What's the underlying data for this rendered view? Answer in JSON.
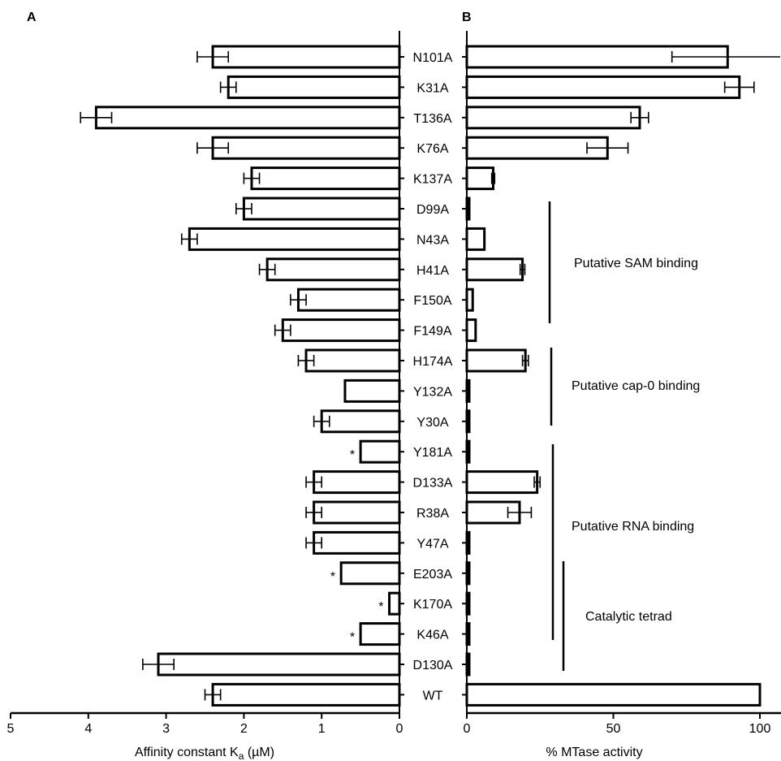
{
  "chart_data": [
    {
      "panel": "A",
      "type": "bar",
      "orientation": "horizontal-reversed",
      "xlabel_main": "Affinity constant K",
      "xlabel_sub": "a",
      "xlabel_unit": " (µM)",
      "xlim": [
        0,
        5
      ],
      "xticks": [
        "5",
        "4",
        "3",
        "2",
        "1",
        "0"
      ],
      "categories": [
        "N101A",
        "K31A",
        "T136A",
        "K76A",
        "K137A",
        "D99A",
        "N43A",
        "H41A",
        "F150A",
        "F149A",
        "H174A",
        "Y132A",
        "Y30A",
        "Y181A",
        "D133A",
        "R38A",
        "Y47A",
        "E203A",
        "K170A",
        "K46A",
        "D130A",
        "WT"
      ],
      "values": [
        2.4,
        2.2,
        3.9,
        2.4,
        1.9,
        2.0,
        2.7,
        1.7,
        1.3,
        1.5,
        1.2,
        0.7,
        1.0,
        0.5,
        1.1,
        1.1,
        1.1,
        0.75,
        0.13,
        0.5,
        3.1,
        2.4
      ],
      "errors": [
        0.2,
        0.1,
        0.2,
        0.2,
        0.1,
        0.1,
        0.1,
        0.1,
        0.1,
        0.1,
        0.1,
        null,
        0.1,
        null,
        0.1,
        0.1,
        0.1,
        null,
        null,
        null,
        0.2,
        0.1
      ],
      "star_marker": "*",
      "starred": [
        "Y181A",
        "E203A",
        "K170A",
        "K46A"
      ]
    },
    {
      "panel": "B",
      "type": "bar",
      "orientation": "horizontal",
      "xlabel": "% MTase activity",
      "xlim": [
        0,
        108
      ],
      "xticks": [
        "0",
        "50",
        "100"
      ],
      "categories": [
        "N101A",
        "K31A",
        "T136A",
        "K76A",
        "K137A",
        "D99A",
        "N43A",
        "H41A",
        "F150A",
        "F149A",
        "H174A",
        "Y132A",
        "Y30A",
        "Y181A",
        "D133A",
        "R38A",
        "Y47A",
        "E203A",
        "K170A",
        "K46A",
        "D130A",
        "WT"
      ],
      "values": [
        89,
        93,
        59,
        48,
        9,
        0.5,
        6,
        19,
        2,
        3,
        20,
        0.5,
        0.5,
        0.5,
        24,
        18,
        0.5,
        0.5,
        0.5,
        0.5,
        0.5,
        100
      ],
      "errors": [
        19,
        5,
        3,
        7,
        0.5,
        null,
        null,
        0.8,
        null,
        null,
        1,
        null,
        null,
        null,
        1,
        4,
        null,
        null,
        null,
        null,
        null,
        null
      ],
      "annotations": [
        {
          "text": "Putative SAM binding",
          "from": "D99A",
          "to": "F149A"
        },
        {
          "text": "Putative cap-0 binding",
          "from": "H174A",
          "to": "Y30A"
        },
        {
          "text": "Putative RNA binding",
          "from": "Y181A",
          "to": "K46A"
        },
        {
          "text": "Catalytic tetrad",
          "from": "E203A",
          "to": "D130A"
        }
      ]
    }
  ]
}
